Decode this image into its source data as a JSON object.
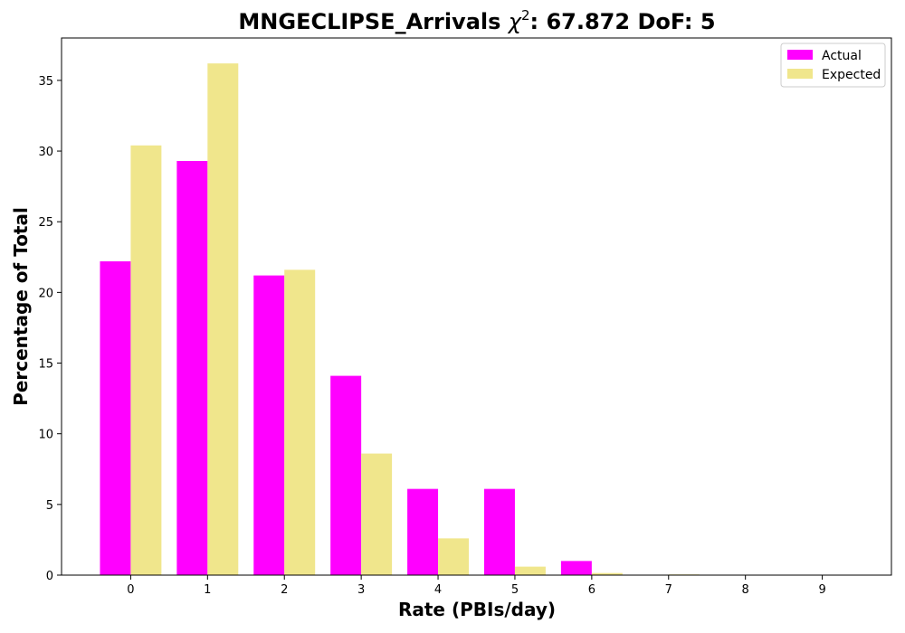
{
  "chart_data": {
    "type": "bar",
    "title_main": "MNGECLIPSE_Arrivals ",
    "title_chi": "χ",
    "title_sup": "2",
    "title_rest": ": 67.872 DoF: 5",
    "xlabel": "Rate (PBIs/day)",
    "ylabel": "Percentage of Total",
    "categories": [
      "0",
      "1",
      "2",
      "3",
      "4",
      "5",
      "6",
      "7",
      "8",
      "9"
    ],
    "ylim": [
      0,
      38
    ],
    "yticks": [
      0,
      5,
      10,
      15,
      20,
      25,
      30,
      35
    ],
    "legend_position": "top-right",
    "series": [
      {
        "name": "Actual",
        "color": "#ff00ff",
        "values": [
          22.2,
          29.3,
          21.2,
          14.1,
          6.1,
          6.1,
          1.0,
          0,
          0,
          0
        ]
      },
      {
        "name": "Expected",
        "color": "#f0e68c",
        "values": [
          30.4,
          36.2,
          21.6,
          8.6,
          2.6,
          0.6,
          0.15,
          0.05,
          0.0,
          0.0
        ]
      }
    ]
  }
}
